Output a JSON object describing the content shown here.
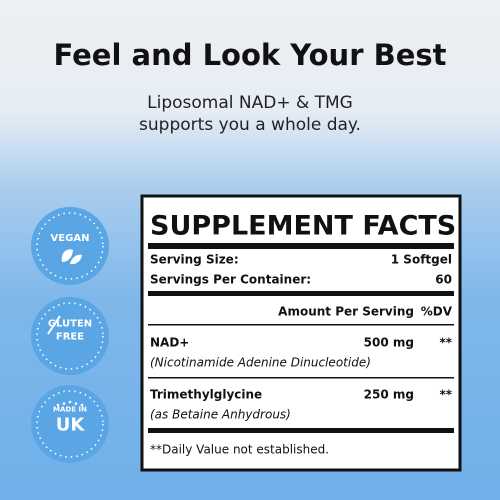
{
  "header": {
    "title": "Feel and Look Your Best",
    "subtitle": [
      "Liposomal NAD+ & TMG",
      "supports you a whole day."
    ]
  },
  "badges": [
    {
      "lines": [
        "VEGAN"
      ]
    },
    {
      "lines": [
        "GLUTEN",
        "FREE"
      ]
    },
    {
      "lines": [
        "MADE IN",
        "UK"
      ]
    }
  ],
  "facts": {
    "title": "SUPPLEMENT FACTS",
    "serving_size": {
      "label": "Serving Size:",
      "value": "1 Softgel"
    },
    "servings": {
      "label": "Servings Per Container:",
      "value": "60"
    },
    "columns": [
      "Amount Per Serving",
      "%DV"
    ],
    "ingredients": [
      {
        "name": "NAD+",
        "amount": "500 mg",
        "dv": "**",
        "note": "(Nicotinamide Adenine Dinucleotide)"
      },
      {
        "name": "Trimethylglycine",
        "amount": "250 mg",
        "dv": "**",
        "note": "(as Betaine Anhydrous)"
      }
    ],
    "footnote": "**Daily Value not established."
  }
}
